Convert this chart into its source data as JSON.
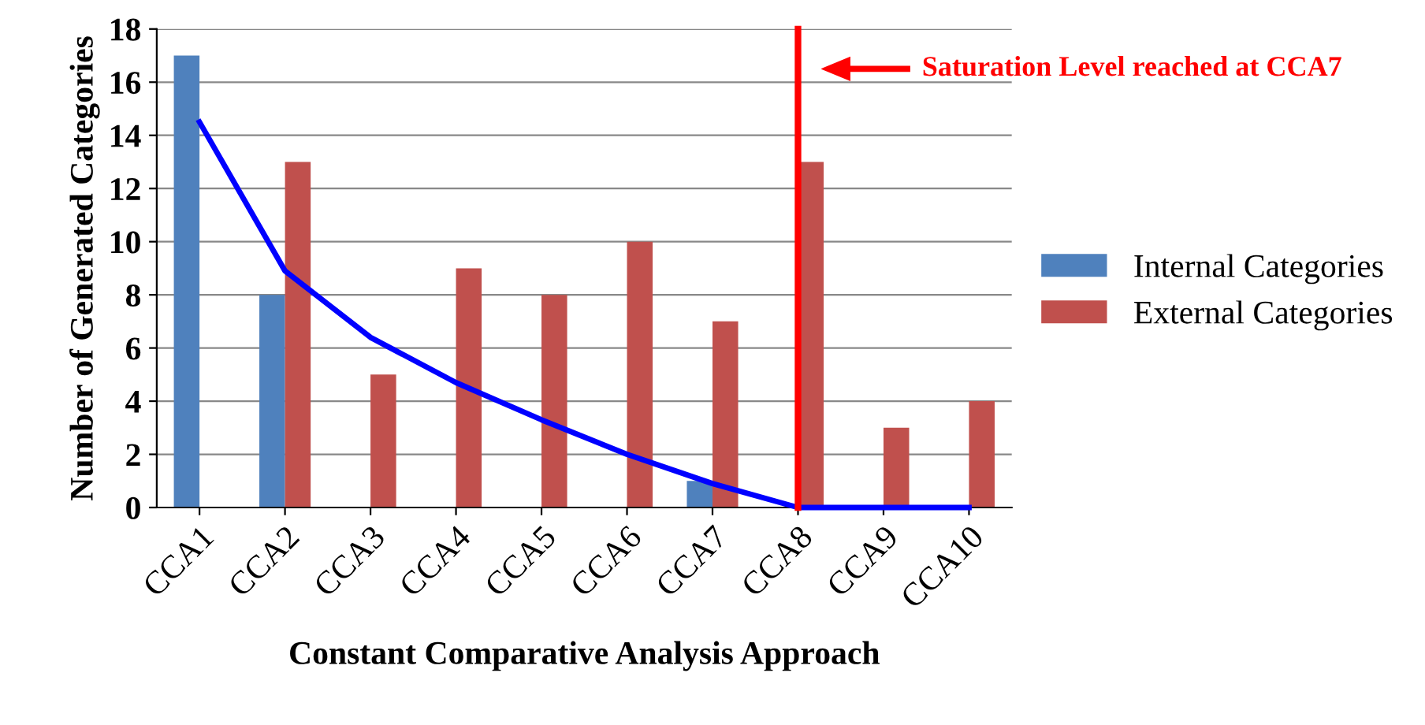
{
  "chart_data": {
    "type": "bar",
    "xlabel": "Constant Comparative Analysis Approach",
    "ylabel": "Number of Generated Categories",
    "categories": [
      "CCA1",
      "CCA2",
      "CCA3",
      "CCA4",
      "CCA5",
      "CCA6",
      "CCA7",
      "CCA8",
      "CCA9",
      "CCA10"
    ],
    "series": [
      {
        "name": "Internal Categories",
        "color": "#4f81bd",
        "values": [
          17,
          8,
          0,
          0,
          0,
          0,
          1,
          0,
          0,
          0
        ]
      },
      {
        "name": "External Categories",
        "color": "#c0504d",
        "values": [
          0,
          13,
          5,
          9,
          8,
          10,
          7,
          13,
          3,
          4
        ]
      },
      {
        "type": "line",
        "color": "#0000ff",
        "values": [
          14.5,
          8.9,
          6.4,
          4.7,
          3.3,
          2.0,
          0.9,
          0,
          0,
          0
        ]
      }
    ],
    "ylim": [
      0,
      18
    ],
    "yticks": [
      0,
      2,
      4,
      6,
      8,
      10,
      12,
      14,
      16,
      18
    ],
    "grid": "y",
    "legend": "right",
    "ref_lines": [
      {
        "axis": "x",
        "value": "CCA8",
        "color": "#ff0000"
      }
    ],
    "annotations": [
      "Saturation Level reached at CCA7"
    ]
  }
}
